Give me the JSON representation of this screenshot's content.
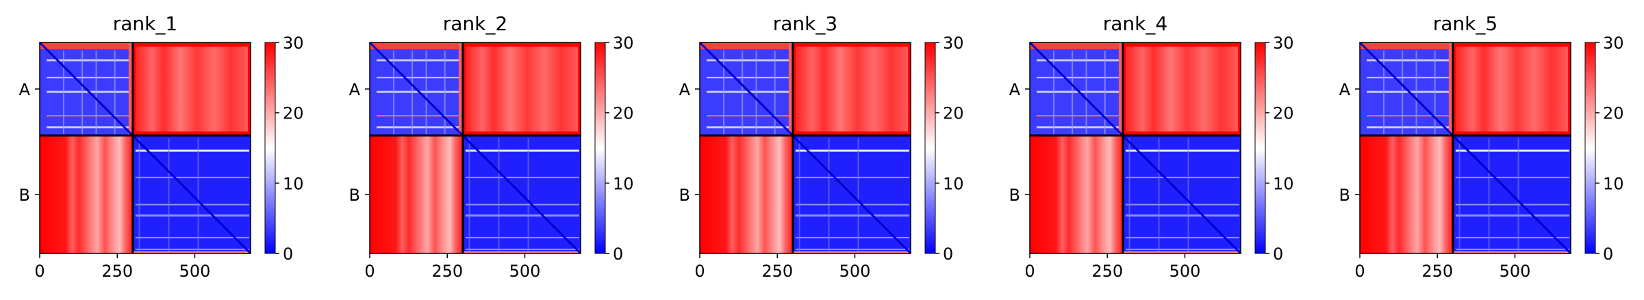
{
  "chart_data": {
    "type": "heatmap",
    "colormap": {
      "low": "#0000ff",
      "mid": "#ffffff",
      "high": "#ff0000"
    },
    "value_range": [
      0,
      30
    ],
    "colorbar_ticks": [
      "0",
      "10",
      "20",
      "30"
    ],
    "x_ticks": [
      {
        "value": 0,
        "label": "0"
      },
      {
        "value": 250,
        "label": "250"
      },
      {
        "value": 500,
        "label": "500"
      }
    ],
    "x_range": [
      0,
      680
    ],
    "chain_boundary": 300,
    "chains": [
      {
        "label": "A",
        "start": 0,
        "end": 300
      },
      {
        "label": "B",
        "start": 300,
        "end": 680
      }
    ],
    "panels": [
      {
        "title": "rank_1"
      },
      {
        "title": "rank_2"
      },
      {
        "title": "rank_3"
      },
      {
        "title": "rank_4"
      },
      {
        "title": "rank_5"
      }
    ]
  }
}
